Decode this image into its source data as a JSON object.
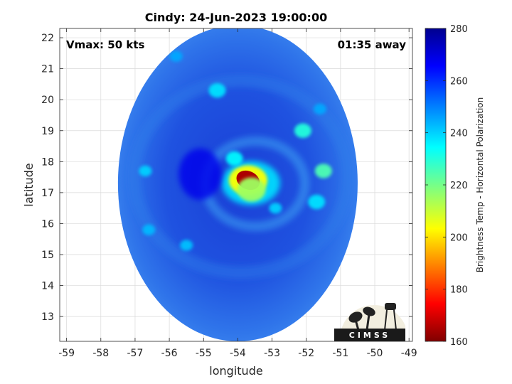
{
  "chart_data": {
    "type": "heatmap",
    "title": "Cindy: 24-Jun-2023 19:00:00",
    "xlabel": "longitude",
    "ylabel": "latitude",
    "xlim": [
      -59.2,
      -48.9
    ],
    "ylim": [
      12.2,
      22.3
    ],
    "xticks": [
      -59,
      -58,
      -57,
      -56,
      -55,
      -54,
      -53,
      -52,
      -51,
      -50,
      -49
    ],
    "yticks": [
      13,
      14,
      15,
      16,
      17,
      18,
      19,
      20,
      21,
      22
    ],
    "grid": true,
    "colorbar": {
      "label": "Brightness Temp - Horizontal Polarization",
      "range": [
        160,
        280
      ],
      "ticks": [
        160,
        180,
        200,
        220,
        240,
        260,
        280
      ],
      "colormap": "jet",
      "placement": "right"
    },
    "swath": {
      "center": [
        -54.0,
        17.3
      ],
      "lon_radius": 3.5,
      "lat_radius": 5.1
    },
    "features": [
      {
        "name": "eyewall-core",
        "lon": -53.7,
        "lat": 17.4,
        "value": 165
      },
      {
        "name": "inner-band",
        "lon": -53.6,
        "lat": 17.1,
        "value": 215
      },
      {
        "name": "northern-convection",
        "lon": -54.1,
        "lat": 18.1,
        "value": 235
      },
      {
        "name": "eastern-band-1",
        "lon": -52.1,
        "lat": 19.0,
        "value": 230
      },
      {
        "name": "eastern-band-2",
        "lon": -51.5,
        "lat": 17.7,
        "value": 225
      },
      {
        "name": "eastern-band-3",
        "lon": -51.7,
        "lat": 16.7,
        "value": 238
      },
      {
        "name": "southern-band",
        "lon": -52.9,
        "lat": 16.5,
        "value": 240
      },
      {
        "name": "north-cell",
        "lon": -54.6,
        "lat": 20.3,
        "value": 238
      },
      {
        "name": "western-cell",
        "lon": -56.7,
        "lat": 17.7,
        "value": 240
      },
      {
        "name": "south-west-cell",
        "lon": -55.5,
        "lat": 15.3,
        "value": 242
      },
      {
        "name": "south-west-cell-2",
        "lon": -56.6,
        "lat": 15.8,
        "value": 243
      },
      {
        "name": "northwest-arc",
        "lon": -55.8,
        "lat": 21.4,
        "value": 245
      },
      {
        "name": "north-east-cell",
        "lon": -51.6,
        "lat": 19.7,
        "value": 245
      },
      {
        "name": "inner-eye",
        "lon": -55.1,
        "lat": 17.6,
        "value": 268
      }
    ],
    "annotations": {
      "vmax": "Vmax: 50 kts",
      "time_offset": "01:35 away"
    }
  },
  "logo": {
    "text": "CIMSS"
  }
}
